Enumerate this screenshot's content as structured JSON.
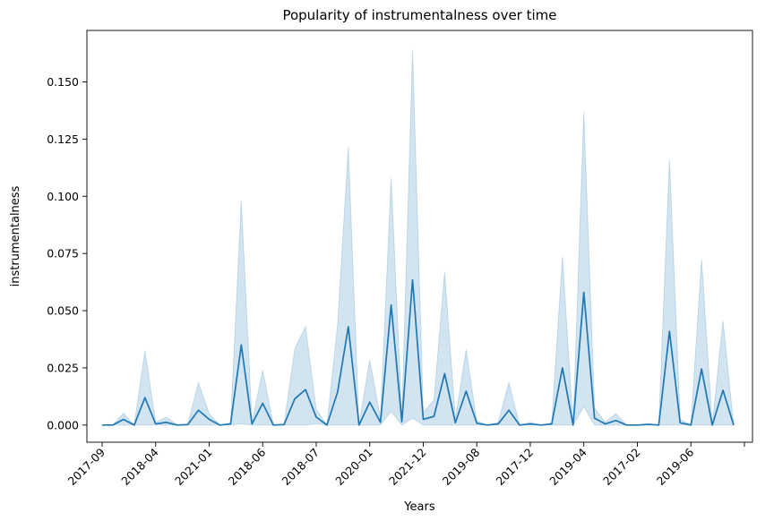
{
  "chart_data": {
    "type": "line",
    "title": "Popularity of instrumentalness over time",
    "xlabel": "Years",
    "ylabel": "instrumentalness",
    "ylim": [
      -0.0075,
      0.1725
    ],
    "yticks": [
      0.0,
      0.025,
      0.05,
      0.075,
      0.1,
      0.125,
      0.15
    ],
    "ytick_labels": [
      "0.000",
      "0.025",
      "0.050",
      "0.075",
      "0.100",
      "0.125",
      "0.150"
    ],
    "xtick_labels": [
      "2017-09",
      "2018-04",
      "2021-01",
      "2018-06",
      "2018-07",
      "2020-01",
      "2021-12",
      "2019-08",
      "2017-12",
      "2019-04",
      "2017-02",
      "2019-06"
    ],
    "xtick_every": 5,
    "grid": false,
    "line_color": "#1f77b4",
    "band_color": "#1f77b4",
    "series": [
      {
        "values": [
          0.0,
          0.0,
          0.0025,
          0.0,
          0.012,
          0.0005,
          0.0012,
          0.0,
          0.0002,
          0.0065,
          0.0025,
          0.0,
          0.0005,
          0.035,
          0.0005,
          0.0095,
          0.0,
          0.0002,
          0.0115,
          0.0155,
          0.0035,
          0.0,
          0.0145,
          0.043,
          0.0,
          0.01,
          0.0012,
          0.0525,
          0.0015,
          0.0635,
          0.0025,
          0.0038,
          0.0225,
          0.001,
          0.0148,
          0.0008,
          0.0,
          0.0005,
          0.0065,
          0.0,
          0.0005,
          0.0,
          0.0005,
          0.025,
          0.0,
          0.058,
          0.003,
          0.0005,
          0.002,
          0.0,
          0.0,
          0.0003,
          0.0,
          0.041,
          0.001,
          0.0,
          0.0245,
          0.0,
          0.0152,
          0.0
        ],
        "ci_lower": [
          0.0,
          0.0,
          0.0,
          0.0,
          0.0,
          0.0,
          0.0,
          0.0,
          0.0,
          0.0,
          0.0,
          0.0,
          0.0,
          0.0005,
          0.0,
          0.0,
          0.0,
          0.0,
          0.0,
          0.0,
          0.0005,
          0.0,
          0.0,
          0.0,
          0.0,
          0.0,
          0.0,
          0.006,
          0.0,
          0.003,
          0.0,
          0.0,
          0.0,
          0.0,
          0.0,
          0.0,
          0.0,
          0.0,
          0.0,
          0.0,
          0.0,
          0.0,
          0.0,
          0.0,
          0.0,
          0.008,
          0.0,
          0.0,
          0.0,
          0.0,
          0.0,
          0.0,
          0.0,
          0.0,
          0.0,
          0.0,
          0.0,
          0.0,
          0.0,
          0.0
        ],
        "ci_upper": [
          0.0,
          0.0,
          0.0052,
          0.0,
          0.0325,
          0.0012,
          0.0035,
          0.0,
          0.0004,
          0.0185,
          0.005,
          0.0,
          0.001,
          0.098,
          0.001,
          0.024,
          0.0,
          0.0005,
          0.0335,
          0.043,
          0.007,
          0.0,
          0.044,
          0.1215,
          0.0,
          0.0285,
          0.003,
          0.108,
          0.0035,
          0.164,
          0.0055,
          0.011,
          0.067,
          0.0025,
          0.033,
          0.0018,
          0.0,
          0.0012,
          0.0185,
          0.0,
          0.0012,
          0.0,
          0.001,
          0.0735,
          0.0,
          0.137,
          0.0075,
          0.0012,
          0.005,
          0.0,
          0.0,
          0.0006,
          0.0,
          0.116,
          0.0025,
          0.0,
          0.0725,
          0.0,
          0.0455,
          0.0
        ]
      }
    ]
  }
}
